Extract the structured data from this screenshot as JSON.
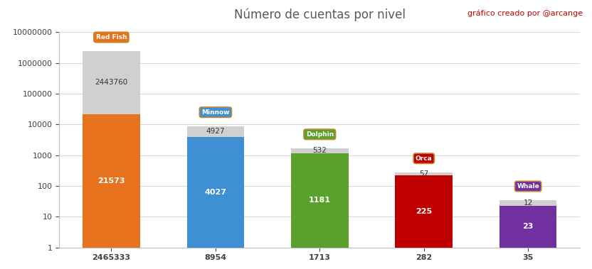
{
  "chart_data": {
    "type": "bar",
    "title": "Número de cuentas por nivel",
    "categories": [
      "2465333",
      "8954",
      "1713",
      "282",
      "35"
    ],
    "stacked": true,
    "log": "y",
    "grid": true,
    "data_labels": true,
    "series": [
      {
        "colors": [
          "#e8731e",
          "#3f8fd4",
          "#5aa02c",
          "#c00000",
          "#7030a0"
        ],
        "values": [
          21573,
          4027,
          1181,
          225,
          23
        ]
      },
      {
        "color": "#d0d0d0",
        "values": [
          2443760,
          4927,
          532,
          57,
          12
        ]
      }
    ],
    "badges": [
      "Red Fish",
      "Minnow",
      "Dolphin",
      "Orca",
      "Whale"
    ],
    "annotations": [
      "gráfico creado por @arcange"
    ],
    "ylim": [
      1,
      10000000
    ],
    "yticks": [
      1,
      10,
      100,
      1000,
      10000,
      100000,
      1000000,
      10000000
    ]
  }
}
